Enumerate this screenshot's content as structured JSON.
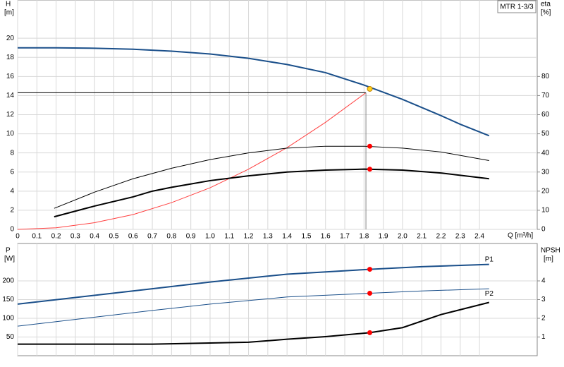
{
  "chart_data": [
    {
      "type": "line",
      "title": "MTR 1-3/3",
      "y_label": "H",
      "y_unit": "[m]",
      "y2_label": "eta",
      "y2_unit": "[%]",
      "x_label": "Q [m³/h]",
      "xlim": [
        0,
        2.7
      ],
      "xticks": [
        0,
        0.1,
        0.2,
        0.3,
        0.4,
        0.5,
        0.6,
        0.7,
        0.8,
        0.9,
        {
          "value": 1,
          "label": "1.0"
        },
        1.1,
        1.2,
        1.3,
        1.4,
        1.5,
        1.6,
        1.7,
        1.8,
        1.9,
        {
          "value": 2,
          "label": "2.0"
        },
        2.1,
        2.2,
        2.3,
        2.4
      ],
      "ylim": [
        0,
        24
      ],
      "yticks": [
        0,
        2,
        4,
        6,
        8,
        10,
        12,
        14,
        16,
        18,
        20
      ],
      "y2lim": [
        0,
        120
      ],
      "y2ticks": [
        0,
        10,
        20,
        30,
        40,
        50,
        60,
        70,
        80
      ],
      "grid": true,
      "series": [
        {
          "color": "#1a4f8a",
          "linewidth": 2,
          "x": [
            0,
            0.2,
            0.4,
            0.6,
            0.8,
            1.0,
            1.2,
            1.4,
            1.6,
            1.8,
            2.0,
            2.2,
            2.3,
            2.45
          ],
          "values": [
            19.0,
            19.0,
            18.95,
            18.85,
            18.65,
            18.35,
            17.9,
            17.25,
            16.4,
            15.1,
            13.6,
            11.9,
            11.0,
            9.8
          ]
        },
        {
          "color": "#ff4040",
          "linewidth": 1,
          "x": [
            0,
            0.2,
            0.4,
            0.6,
            0.8,
            1.0,
            1.2,
            1.4,
            1.6,
            1.81
          ],
          "values": [
            0,
            0.17,
            0.7,
            1.55,
            2.8,
            4.35,
            6.3,
            8.55,
            11.2,
            14.3
          ]
        },
        {
          "color": "#000000",
          "linewidth": 1,
          "x": [
            0,
            1.81
          ],
          "values": [
            14.3,
            14.3
          ]
        },
        {
          "color": "#888888",
          "linewidth": 1,
          "x": [
            1.81,
            1.81
          ],
          "values": [
            0,
            14.3
          ]
        },
        {
          "color": "#000000",
          "linewidth": 1,
          "axis": "y2",
          "x": [
            0.19,
            0.4,
            0.6,
            0.8,
            1.0,
            1.2,
            1.4,
            1.6,
            1.8,
            2.0,
            2.2,
            2.45
          ],
          "values": [
            11,
            19.5,
            26.5,
            32,
            36.5,
            40,
            42.5,
            43.5,
            43.5,
            42.5,
            40.5,
            36
          ]
        },
        {
          "color": "#000000",
          "linewidth": 2,
          "axis": "y2",
          "x": [
            0.19,
            0.4,
            0.6,
            0.7,
            0.8,
            1.0,
            1.2,
            1.4,
            1.6,
            1.8,
            2.0,
            2.2,
            2.45
          ],
          "values": [
            6.6,
            12.2,
            17,
            20,
            22,
            25.5,
            28,
            30,
            31,
            31.5,
            31,
            29.5,
            26.5
          ]
        }
      ],
      "points": [
        {
          "x": 1.83,
          "y": 14.7,
          "color": "#ffd21f"
        },
        {
          "x": 1.83,
          "y": 43.5,
          "color": "#ff0000",
          "axis": "y2"
        },
        {
          "x": 1.83,
          "y": 31.5,
          "color": "#ff0000",
          "axis": "y2"
        }
      ]
    },
    {
      "type": "line",
      "y_label": "P",
      "y_unit": "[W]",
      "y2_label": "NPSH",
      "y2_unit": "[m]",
      "xlim": [
        0,
        2.7
      ],
      "xticks": [
        0,
        0.1,
        0.2,
        0.3,
        0.4,
        0.5,
        0.6,
        0.7,
        0.8,
        0.9,
        1,
        1.1,
        1.2,
        1.3,
        1.4,
        1.5,
        1.6,
        1.7,
        1.8,
        1.9,
        2,
        2.1,
        2.2,
        2.3,
        2.4
      ],
      "ylim": [
        0,
        300
      ],
      "yticks": [
        50,
        100,
        150,
        200
      ],
      "y2lim": [
        0,
        6
      ],
      "y2ticks": [
        1,
        2,
        3,
        4
      ],
      "grid": true,
      "series": [
        {
          "name": "P1",
          "color": "#1a4f8a",
          "linewidth": 2,
          "x": [
            0,
            0.7,
            1.0,
            1.4,
            1.83,
            2.1,
            2.45
          ],
          "values": [
            138,
            179,
            197,
            218,
            231,
            238,
            244
          ]
        },
        {
          "name": "P2",
          "color": "#1a4f8a",
          "linewidth": 1,
          "x": [
            0,
            0.7,
            1.0,
            1.4,
            1.83,
            2.1,
            2.45
          ],
          "values": [
            79,
            121,
            138,
            157,
            167,
            173,
            179
          ]
        },
        {
          "color": "#000000",
          "linewidth": 2,
          "axis": "y2",
          "x": [
            0,
            0.7,
            1.0,
            1.2,
            1.4,
            1.6,
            1.83,
            2.0,
            2.2,
            2.45
          ],
          "values": [
            0.62,
            0.62,
            0.68,
            0.72,
            0.88,
            1.02,
            1.23,
            1.5,
            2.2,
            2.85
          ]
        }
      ],
      "points": [
        {
          "x": 1.83,
          "y": 231,
          "color": "#ff0000"
        },
        {
          "x": 1.83,
          "y": 167,
          "color": "#ff0000"
        },
        {
          "x": 1.83,
          "y": 1.23,
          "color": "#ff0000",
          "axis": "y2"
        }
      ]
    }
  ]
}
